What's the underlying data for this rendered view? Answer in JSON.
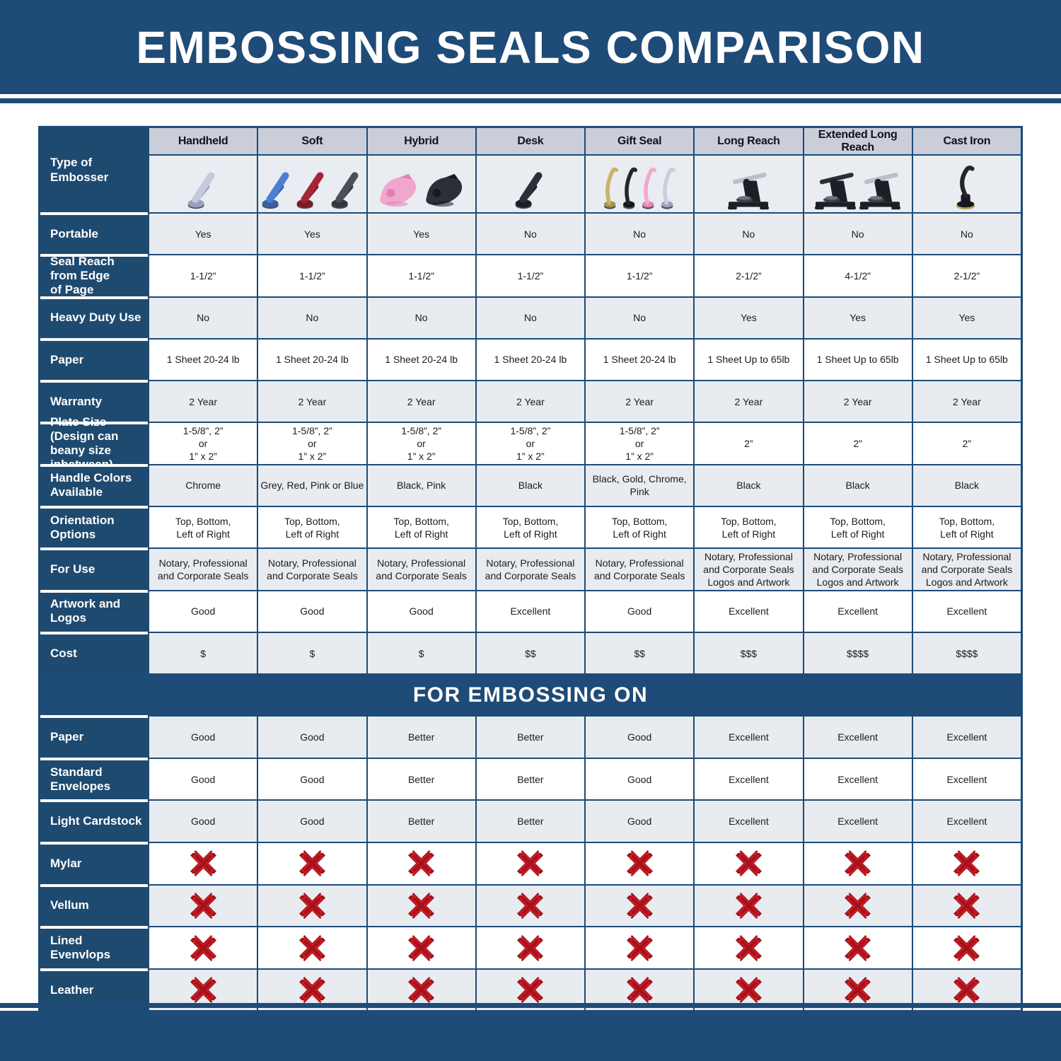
{
  "title": "EMBOSSING SEALS COMPARISON",
  "colors": {
    "accent_blue": "#1e4b77",
    "row_header_blue": "#1f4a70",
    "column_header_gray": "#c9ced9",
    "alt_row_gray": "#e8ebef",
    "x_mark_red": "#a8111a"
  },
  "chart_data": {
    "type": "table",
    "title": "EMBOSSING SEALS COMPARISON",
    "section_header": "FOR EMBOSSING ON",
    "corner_label": "Type of Embosser",
    "columns": [
      "Handheld",
      "Soft",
      "Hybrid",
      "Desk",
      "Gift Seal",
      "Long Reach",
      "Extended Long Reach",
      "Cast Iron"
    ],
    "embosser_images": [
      {
        "column": "Handheld",
        "icons": [
          {
            "kind": "plier",
            "handle": "#c3cade",
            "body": "#98a2ba"
          }
        ]
      },
      {
        "column": "Soft",
        "icons": [
          {
            "kind": "plier",
            "handle": "#4a7fd4",
            "body": "#3a5f9e"
          },
          {
            "kind": "plier",
            "handle": "#a62433",
            "body": "#7e1b28"
          },
          {
            "kind": "plier",
            "handle": "#4a4e58",
            "body": "#33363e"
          }
        ]
      },
      {
        "column": "Hybrid",
        "icons": [
          {
            "kind": "shell",
            "handle": "#f2a6cd",
            "body": "#e07fb2"
          },
          {
            "kind": "shell",
            "handle": "#2c2f37",
            "body": "#17191f"
          }
        ]
      },
      {
        "column": "Desk",
        "icons": [
          {
            "kind": "plier",
            "handle": "#2c2f37",
            "body": "#1c1e24"
          }
        ]
      },
      {
        "column": "Gift Seal",
        "icons": [
          {
            "kind": "slim",
            "handle": "#c9b26a",
            "body": "#a8914c"
          },
          {
            "kind": "slim",
            "handle": "#23252c",
            "body": "#131419"
          },
          {
            "kind": "slim",
            "handle": "#f2a8cc",
            "body": "#df8ab6"
          },
          {
            "kind": "slim",
            "handle": "#c9cede",
            "body": "#9aa3b8"
          }
        ]
      },
      {
        "column": "Long Reach",
        "icons": [
          {
            "kind": "press",
            "handle": "#b9c0cc",
            "body": "#1d1f25"
          }
        ]
      },
      {
        "column": "Extended Long Reach",
        "icons": [
          {
            "kind": "press",
            "handle": "#2b2e36",
            "body": "#1d1f25"
          },
          {
            "kind": "press",
            "handle": "#b9c0cc",
            "body": "#1d1f25"
          }
        ]
      },
      {
        "column": "Cast Iron",
        "icons": [
          {
            "kind": "lever",
            "handle": "#23252c",
            "body": "#17181d"
          }
        ]
      }
    ],
    "spec_rows": [
      {
        "label": "Portable",
        "values": [
          "Yes",
          "Yes",
          "Yes",
          "No",
          "No",
          "No",
          "No",
          "No"
        ]
      },
      {
        "label": "Seal Reach from Edge\nof Page",
        "values": [
          "1-1/2”",
          "1-1/2”",
          "1-1/2”",
          "1-1/2”",
          "1-1/2”",
          "2-1/2”",
          "4-1/2”",
          "2-1/2”"
        ]
      },
      {
        "label": "Heavy Duty Use",
        "values": [
          "No",
          "No",
          "No",
          "No",
          "No",
          "Yes",
          "Yes",
          "Yes"
        ]
      },
      {
        "label": "Paper",
        "values": [
          "1 Sheet 20-24 lb",
          "1 Sheet 20-24 lb",
          "1 Sheet 20-24 lb",
          "1 Sheet 20-24 lb",
          "1 Sheet 20-24 lb",
          "1 Sheet Up to 65lb",
          "1 Sheet Up to 65lb",
          "1 Sheet Up to 65lb"
        ]
      },
      {
        "label": "Warranty",
        "values": [
          "2 Year",
          "2 Year",
          "2 Year",
          "2 Year",
          "2 Year",
          "2 Year",
          "2 Year",
          "2 Year"
        ]
      },
      {
        "label": "Plate Size (Design can\nbeany size inbetween)",
        "values": [
          "1-5/8”, 2”\nor\n1” x 2”",
          "1-5/8”, 2”\nor\n1” x 2”",
          "1-5/8”, 2”\nor\n1” x 2”",
          "1-5/8”, 2”\nor\n1” x 2”",
          "1-5/8”, 2”\nor\n1” x 2”",
          "2”",
          "2”",
          "2”"
        ]
      },
      {
        "label": "Handle Colors Available",
        "values": [
          "Chrome",
          "Grey, Red, Pink or Blue",
          "Black, Pink",
          "Black",
          "Black, Gold, Chrome, Pink",
          "Black",
          "Black",
          "Black"
        ]
      },
      {
        "label": "Orientation Options",
        "values": [
          "Top, Bottom,\nLeft of Right",
          "Top, Bottom,\nLeft of Right",
          "Top, Bottom,\nLeft of Right",
          "Top, Bottom,\nLeft of Right",
          "Top, Bottom,\nLeft of Right",
          "Top, Bottom,\nLeft of Right",
          "Top, Bottom,\nLeft of Right",
          "Top, Bottom,\nLeft of Right"
        ]
      },
      {
        "label": "For Use",
        "values": [
          "Notary, Professional\nand Corporate Seals",
          "Notary, Professional\nand Corporate Seals",
          "Notary, Professional\nand Corporate Seals",
          "Notary, Professional\nand Corporate Seals",
          "Notary, Professional\nand Corporate Seals",
          "Notary, Professional\nand Corporate Seals\nLogos and Artwork",
          "Notary, Professional\nand Corporate Seals\nLogos and Artwork",
          "Notary, Professional\nand Corporate Seals\nLogos and Artwork"
        ]
      },
      {
        "label": "Artwork and Logos",
        "values": [
          "Good",
          "Good",
          "Good",
          "Excellent",
          "Good",
          "Excellent",
          "Excellent",
          "Excellent"
        ]
      },
      {
        "label": "Cost",
        "values": [
          "$",
          "$",
          "$",
          "$$",
          "$$",
          "$$$",
          "$$$$",
          "$$$$"
        ]
      }
    ],
    "embossing_rows": [
      {
        "label": "Paper",
        "values": [
          "Good",
          "Good",
          "Better",
          "Better",
          "Good",
          "Excellent",
          "Excellent",
          "Excellent"
        ]
      },
      {
        "label": "Standard Envelopes",
        "values": [
          "Good",
          "Good",
          "Better",
          "Better",
          "Good",
          "Excellent",
          "Excellent",
          "Excellent"
        ]
      },
      {
        "label": "Light Cardstock",
        "values": [
          "Good",
          "Good",
          "Better",
          "Better",
          "Good",
          "Excellent",
          "Excellent",
          "Excellent"
        ]
      },
      {
        "label": "Mylar",
        "icon": "red-x-icon",
        "values": [
          "X",
          "X",
          "X",
          "X",
          "X",
          "X",
          "X",
          "X"
        ]
      },
      {
        "label": "Vellum",
        "icon": "red-x-icon",
        "values": [
          "X",
          "X",
          "X",
          "X",
          "X",
          "X",
          "X",
          "X"
        ]
      },
      {
        "label": "Lined Evenvlops",
        "icon": "red-x-icon",
        "values": [
          "X",
          "X",
          "X",
          "X",
          "X",
          "X",
          "X",
          "X"
        ]
      },
      {
        "label": "Leather",
        "icon": "red-x-icon",
        "values": [
          "X",
          "X",
          "X",
          "X",
          "X",
          "X",
          "X",
          "X"
        ]
      }
    ]
  }
}
